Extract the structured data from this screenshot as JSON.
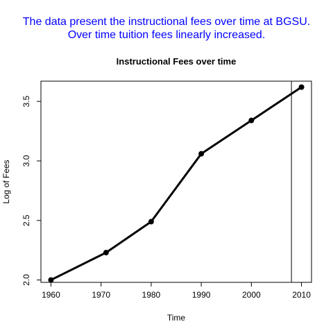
{
  "caption": {
    "line1": "The data present the instructional fees over time at BGSU.",
    "line2": "Over time tuition fees linearly increased."
  },
  "chart_data": {
    "type": "line",
    "title": "Instructional Fees over time",
    "xlabel": "Time",
    "ylabel": "Log of Fees",
    "x": [
      1960,
      1971,
      1980,
      1990,
      2000,
      2010
    ],
    "series": [
      {
        "values": [
          2.0,
          2.23,
          2.49,
          3.06,
          3.34,
          3.62
        ]
      }
    ],
    "xlim": [
      1958,
      2012
    ],
    "ylim": [
      1.98,
      3.67
    ],
    "xticks": [
      "1960",
      "1970",
      "1980",
      "1990",
      "2000",
      "2010"
    ],
    "yticks": [
      "2.0",
      "2.5",
      "3.0",
      "3.5"
    ],
    "vline_x": 2008,
    "line_color": "#000000",
    "caption_color": "#0000ff",
    "grid": false,
    "legend": "none"
  }
}
